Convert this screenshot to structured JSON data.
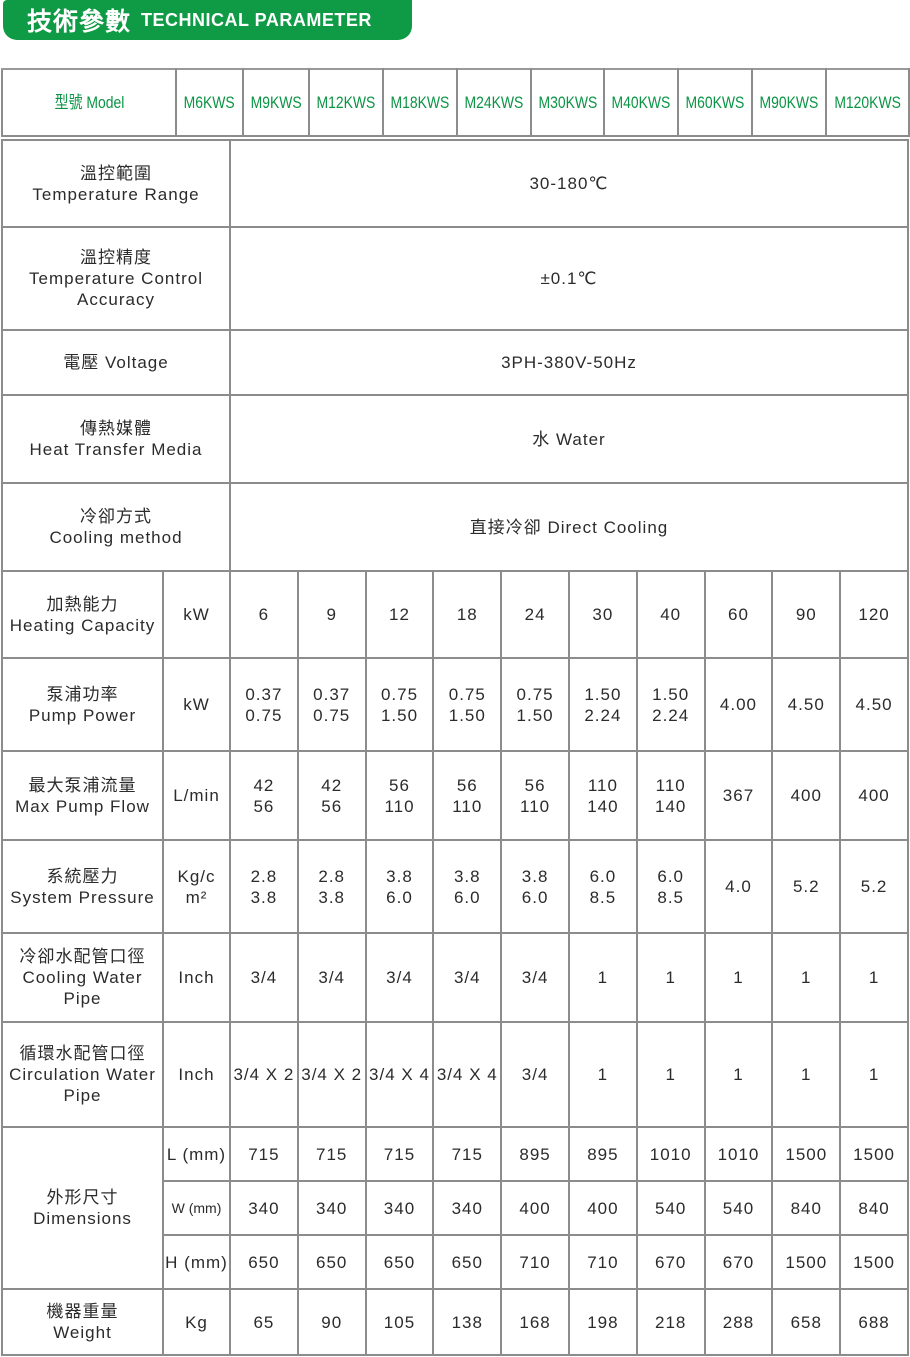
{
  "banner": {
    "title_zh": "技術參數",
    "title_en": "TECHNICAL PARAMETER"
  },
  "header": {
    "model_label": "型號 Model",
    "models": [
      "M6KWS",
      "M9KWS",
      "M12KWS",
      "M18KWS",
      "M24KWS",
      "M30KWS",
      "M40KWS",
      "M60KWS",
      "M90KWS",
      "M120KWS"
    ]
  },
  "spanRows": [
    {
      "zh": "溫控範圍",
      "en": "Temperature Range",
      "value": "30-180℃"
    },
    {
      "zh": "溫控精度",
      "en": "Temperature Control Accuracy",
      "value": "±0.1℃"
    },
    {
      "zh": "",
      "en": "電壓 Voltage",
      "value": "3PH-380V-50Hz"
    },
    {
      "zh": "傳熱媒體",
      "en": "Heat Transfer Media",
      "value": "水 Water"
    },
    {
      "zh": "冷卻方式",
      "en": "Cooling method",
      "value": "直接冷卻 Direct Cooling"
    }
  ],
  "rows": [
    {
      "zh": "加熱能力",
      "en": "Heating Capacity",
      "unit": "kW",
      "values": [
        "6",
        "9",
        "12",
        "18",
        "24",
        "30",
        "40",
        "60",
        "90",
        "120"
      ]
    },
    {
      "zh": "泵浦功率",
      "en": "Pump Power",
      "unit": "kW",
      "values": [
        "0.37\n0.75",
        "0.37\n0.75",
        "0.75\n1.50",
        "0.75\n1.50",
        "0.75\n1.50",
        "1.50\n2.24",
        "1.50\n2.24",
        "4.00",
        "4.50",
        "4.50"
      ]
    },
    {
      "zh": "最大泵浦流量",
      "en": "Max Pump Flow",
      "unit": "L/min",
      "values": [
        "42\n56",
        "42\n56",
        "56\n110",
        "56\n110",
        "56\n110",
        "110\n140",
        "110\n140",
        "367",
        "400",
        "400"
      ]
    },
    {
      "zh": "系統壓力",
      "en": "System Pressure",
      "unit": "Kg/c\nm²",
      "values": [
        "2.8\n3.8",
        "2.8\n3.8",
        "3.8\n6.0",
        "3.8\n6.0",
        "3.8\n6.0",
        "6.0\n8.5",
        "6.0\n8.5",
        "4.0",
        "5.2",
        "5.2"
      ]
    },
    {
      "zh": "冷卻水配管口徑",
      "en": "Cooling Water Pipe",
      "unit": "Inch",
      "values": [
        "3/4",
        "3/4",
        "3/4",
        "3/4",
        "3/4",
        "1",
        "1",
        "1",
        "1",
        "1"
      ]
    },
    {
      "zh": "循環水配管口徑",
      "en": "Circulation Water Pipe",
      "unit": "Inch",
      "values": [
        "3/4 X 2",
        "3/4 X 2",
        "3/4 X 4",
        "3/4 X 4",
        "3/4",
        "1",
        "1",
        "1",
        "1",
        "1"
      ]
    }
  ],
  "dimensions": {
    "zh": "外形尺寸",
    "en": "Dimensions",
    "sub": [
      {
        "unit": "L (mm)",
        "values": [
          "715",
          "715",
          "715",
          "715",
          "895",
          "895",
          "1010",
          "1010",
          "1500",
          "1500"
        ]
      },
      {
        "unit": "W (mm)",
        "values": [
          "340",
          "340",
          "340",
          "340",
          "400",
          "400",
          "540",
          "540",
          "840",
          "840"
        ]
      },
      {
        "unit": "H (mm)",
        "values": [
          "650",
          "650",
          "650",
          "650",
          "710",
          "710",
          "670",
          "670",
          "1500",
          "1500"
        ]
      }
    ]
  },
  "weight": {
    "zh": "機器重量",
    "en": "Weight",
    "unit": "Kg",
    "values": [
      "65",
      "90",
      "105",
      "138",
      "168",
      "198",
      "218",
      "288",
      "658",
      "688"
    ]
  },
  "colors": {
    "brand_green": "#0f9a45",
    "border": "#8c8c8c"
  }
}
